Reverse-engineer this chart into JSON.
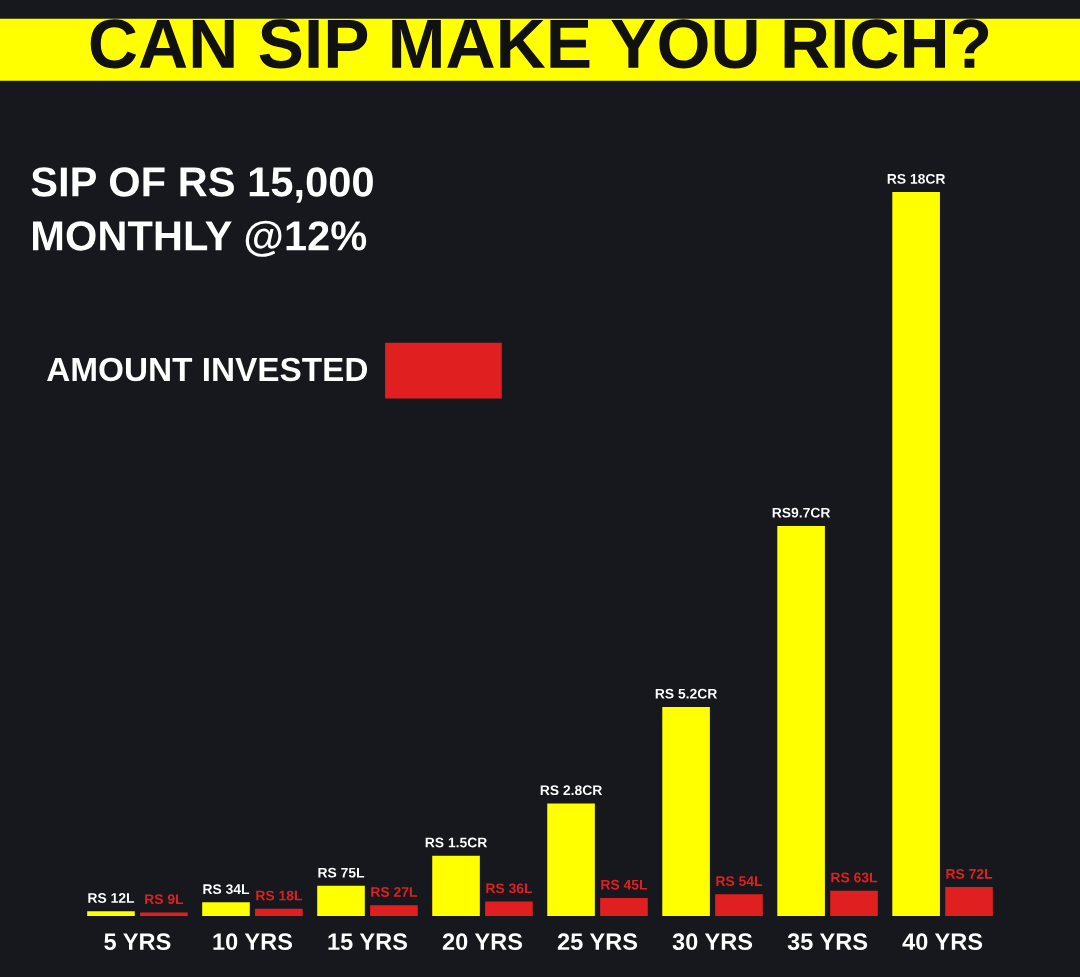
{
  "chart_data": {
    "type": "bar",
    "title": "CAN SIP MAKE YOU RICH?",
    "subtitle": "SIP OF RS 15,000\nMONTHLY @12%",
    "categories": [
      "5 YRS",
      "10 YRS",
      "15 YRS",
      "20 YRS",
      "25 YRS",
      "30 YRS",
      "35 YRS",
      "40 YRS"
    ],
    "legend": "top left",
    "grid": false,
    "tick_labels": "x",
    "series": [
      {
        "color": "#ffff00",
        "values": [
          12,
          34,
          75,
          150,
          280,
          520,
          970,
          1800
        ],
        "value_labels": [
          "RS 12L",
          "RS 34L",
          "RS 75L",
          "RS 1.5CR",
          "RS 2.8CR",
          "RS 5.2CR",
          "RS9.7CR",
          "RS 18CR"
        ]
      },
      {
        "name": "AMOUNT INVESTED",
        "color": "#e02020",
        "type": "bar",
        "values": [
          9,
          18,
          27,
          36,
          45,
          54,
          63,
          72
        ],
        "value_labels": [
          "RS 9L",
          "RS 18L",
          "RS 27L",
          "RS 36L",
          "RS 45L",
          "RS 54L",
          "RS 63L",
          "RS 72L"
        ]
      }
    ]
  }
}
